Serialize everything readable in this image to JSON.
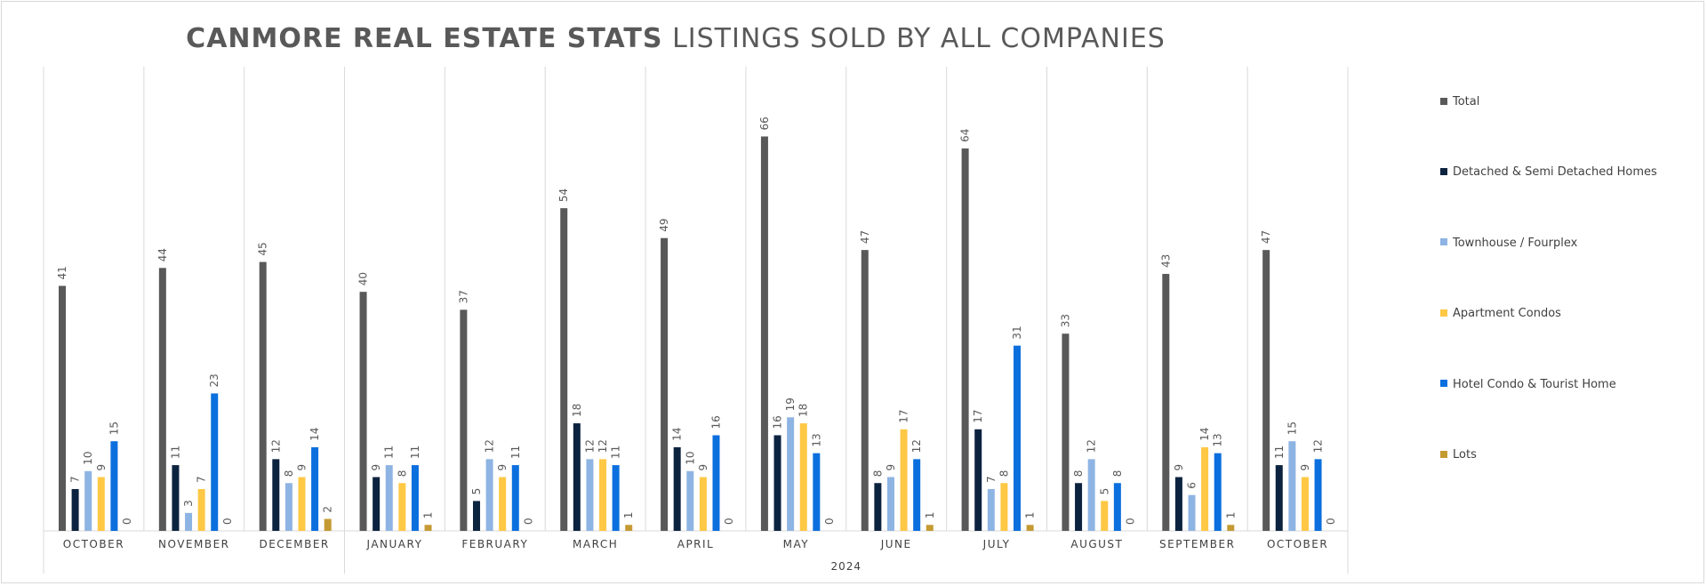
{
  "title": {
    "bold": "CANMORE REAL ESTATE STATS",
    "light": "LISTINGS SOLD BY ALL COMPANIES"
  },
  "chart_data": {
    "type": "bar",
    "title": "CANMORE REAL ESTATE STATS LISTINGS SOLD BY ALL COMPANIES",
    "categories": [
      "OCTOBER",
      "NOVEMBER",
      "DECEMBER",
      "JANUARY",
      "FEBRUARY",
      "MARCH",
      "APRIL",
      "MAY",
      "JUNE",
      "JULY",
      "AUGUST",
      "SEPTEMBER",
      "OCTOBER"
    ],
    "category_group": {
      "label": "2024",
      "from_index": 3,
      "to_index": 12
    },
    "legend_position": "right",
    "grid": false,
    "ylim": [
      0,
      70
    ],
    "series": [
      {
        "name": "Total",
        "color": "#595959",
        "values": [
          41,
          44,
          45,
          40,
          37,
          54,
          49,
          66,
          47,
          64,
          33,
          43,
          47
        ]
      },
      {
        "name": "Detached & Semi Detached Homes",
        "color": "#0c2340",
        "values": [
          7,
          11,
          12,
          9,
          5,
          18,
          14,
          16,
          8,
          17,
          8,
          9,
          11
        ]
      },
      {
        "name": "Townhouse / Fourplex",
        "color": "#8eb4e3",
        "values": [
          10,
          3,
          8,
          11,
          12,
          12,
          10,
          19,
          9,
          7,
          12,
          6,
          15
        ]
      },
      {
        "name": "Apartment Condos",
        "color": "#ffc845",
        "values": [
          9,
          7,
          9,
          8,
          9,
          12,
          9,
          18,
          17,
          8,
          5,
          14,
          9
        ]
      },
      {
        "name": "Hotel Condo & Tourist Home",
        "color": "#0b6fde",
        "values": [
          15,
          23,
          14,
          11,
          11,
          11,
          16,
          13,
          12,
          31,
          8,
          13,
          12
        ]
      },
      {
        "name": "Lots",
        "color": "#c49a32",
        "values": [
          0,
          0,
          2,
          1,
          0,
          1,
          0,
          0,
          1,
          1,
          0,
          1,
          0
        ]
      }
    ]
  }
}
